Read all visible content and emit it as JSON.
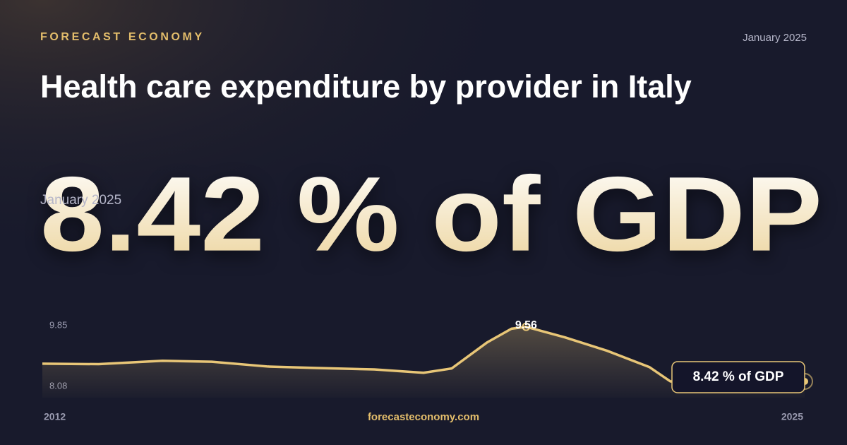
{
  "brand": "FORECAST ECONOMY",
  "date": "January 2025",
  "headline_date": "January 2025",
  "headline": "8.42 % of GDP",
  "site": "forecasteconomy.com",
  "chart_data": {
    "type": "line",
    "title": "Health care expenditure by provider in Italy",
    "x": [
      2012,
      2012.96,
      2014.05,
      2014.89,
      2015.85,
      2016.69,
      2017.66,
      2018.5,
      2018.98,
      2019.58,
      2020.0,
      2020.25,
      2020.91,
      2021.63,
      2022.35,
      2022.71,
      2025
    ],
    "values": [
      8.79,
      8.78,
      8.85,
      8.83,
      8.73,
      8.7,
      8.67,
      8.6,
      8.69,
      9.23,
      9.52,
      9.56,
      9.34,
      9.06,
      8.72,
      8.42,
      8.42
    ],
    "end_label": "8.42 % of GDP",
    "color": "#e8c677",
    "xlim": [
      2012,
      2025
    ],
    "xticks": [
      2012,
      2025
    ],
    "ylim": [
      8.08,
      9.85
    ],
    "yticks": [
      9.85,
      8.08
    ]
  }
}
